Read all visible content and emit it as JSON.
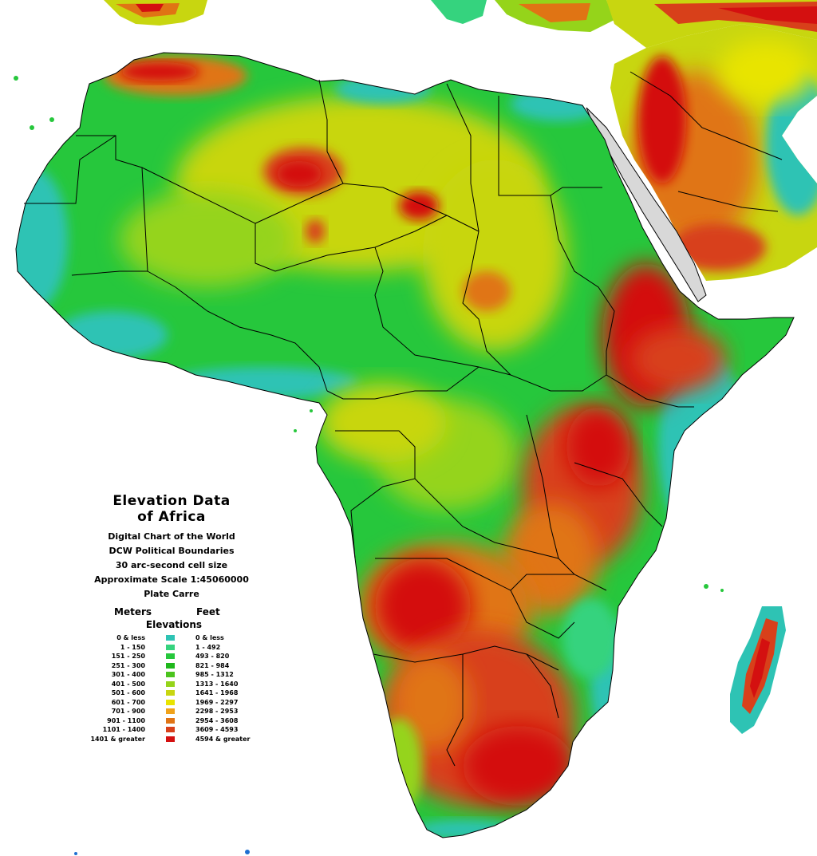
{
  "map": {
    "title_line1": "Elevation Data",
    "title_line2": "of Africa",
    "subtitle_lines": [
      "Digital Chart of the World",
      "DCW Political Boundaries",
      "30 arc-second cell size",
      "Approximate Scale 1:45060000",
      "Plate Carre"
    ]
  },
  "legend": {
    "meters_header": "Meters",
    "feet_header": "Feet",
    "elevations_header": "Elevations",
    "classes": [
      {
        "meters": "0 & less",
        "feet": "0 & less",
        "color": "#2ec3b4"
      },
      {
        "meters": "1 - 150",
        "feet": "1 - 492",
        "color": "#35d37e"
      },
      {
        "meters": "151 - 250",
        "feet": "493 - 820",
        "color": "#26c73c"
      },
      {
        "meters": "251 - 300",
        "feet": "821 - 984",
        "color": "#1fb81c"
      },
      {
        "meters": "301 - 400",
        "feet": "985 - 1312",
        "color": "#4cc41e"
      },
      {
        "meters": "401 - 500",
        "feet": "1313 - 1640",
        "color": "#95d41a"
      },
      {
        "meters": "501 - 600",
        "feet": "1641 - 1968",
        "color": "#c8d610"
      },
      {
        "meters": "601 - 700",
        "feet": "1969 - 2297",
        "color": "#e8e400"
      },
      {
        "meters": "701 - 900",
        "feet": "2298 - 2953",
        "color": "#f0a21a"
      },
      {
        "meters": "901 - 1100",
        "feet": "2954 - 3608",
        "color": "#e07414"
      },
      {
        "meters": "1101 - 1400",
        "feet": "3609 - 4593",
        "color": "#d8401a"
      },
      {
        "meters": "1401 & greater",
        "feet": "4594 & greater",
        "color": "#d41010"
      }
    ]
  },
  "colors": {
    "sea": "#ffffff",
    "lowland": "#2ec3b4",
    "plain": "#26c73c",
    "plateau": "#c8d610",
    "highland": "#e07414",
    "mountain": "#d41010",
    "boundary": "#000000",
    "red_sea": "#d8d8d8"
  }
}
